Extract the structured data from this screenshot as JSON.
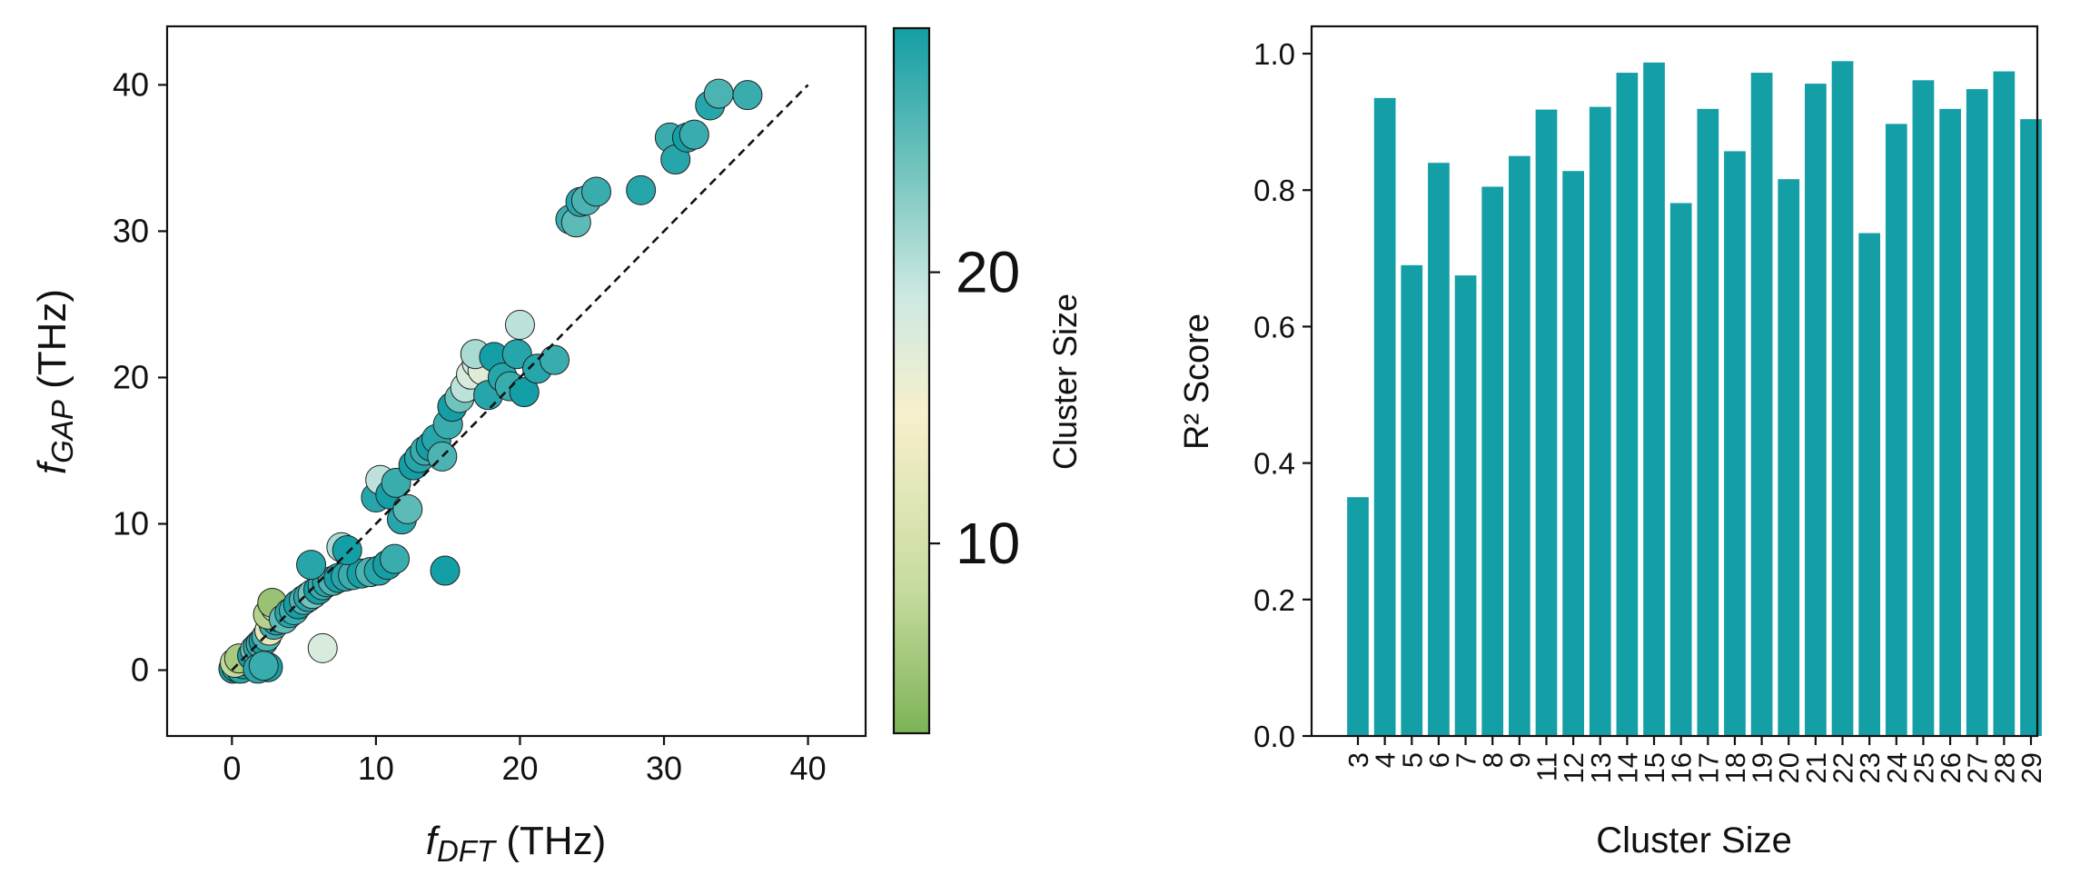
{
  "chart_data": [
    {
      "type": "scatter",
      "xlabel": {
        "main": "f",
        "sub": "DFT",
        "unit": " (THz)"
      },
      "ylabel": {
        "main": "f",
        "sub": "GAP",
        "unit": " (THz)"
      },
      "xlim": [
        -4.5,
        44
      ],
      "ylim": [
        -4.5,
        44
      ],
      "xticks": [
        0,
        10,
        20,
        30,
        40
      ],
      "yticks": [
        0,
        10,
        20,
        30,
        40
      ],
      "reference_line": {
        "from": [
          0,
          0
        ],
        "to": [
          40,
          40
        ],
        "style": "dashed"
      },
      "colorbar": {
        "label": "Cluster Size",
        "range": [
          3,
          29
        ],
        "ticks": [
          10,
          20
        ],
        "colors": [
          "#7db356",
          "#c6db9e",
          "#f7f0cc",
          "#cde9e2",
          "#73c4bd",
          "#149ea5"
        ]
      },
      "points": [
        [
          0.1,
          0.1,
          29
        ],
        [
          0.3,
          0.2,
          27
        ],
        [
          0.5,
          0.3,
          25
        ],
        [
          0.6,
          0.1,
          28
        ],
        [
          0.8,
          0.4,
          29
        ],
        [
          1.0,
          0.6,
          26
        ],
        [
          1.2,
          0.8,
          28
        ],
        [
          0.2,
          0.5,
          8
        ],
        [
          0.5,
          0.8,
          6
        ],
        [
          1.4,
          1.0,
          29
        ],
        [
          1.6,
          1.4,
          24
        ],
        [
          1.8,
          1.6,
          28
        ],
        [
          2.0,
          1.8,
          27
        ],
        [
          2.2,
          2.0,
          29
        ],
        [
          2.4,
          2.3,
          26
        ],
        [
          2.6,
          2.7,
          12
        ],
        [
          2.9,
          3.1,
          27
        ],
        [
          3.1,
          3.4,
          28
        ],
        [
          3.3,
          3.6,
          29
        ],
        [
          2.5,
          3.8,
          7
        ],
        [
          3.0,
          4.3,
          9
        ],
        [
          2.8,
          4.6,
          5
        ],
        [
          3.6,
          3.5,
          25
        ],
        [
          4.0,
          3.9,
          28
        ],
        [
          4.3,
          4.1,
          27
        ],
        [
          4.6,
          4.5,
          29
        ],
        [
          5.0,
          4.8,
          26
        ],
        [
          5.3,
          5.0,
          28
        ],
        [
          5.6,
          5.2,
          24
        ],
        [
          6.0,
          5.5,
          29
        ],
        [
          6.3,
          5.8,
          27
        ],
        [
          6.6,
          6.0,
          28
        ],
        [
          7.0,
          6.1,
          26
        ],
        [
          7.4,
          6.3,
          29
        ],
        [
          7.9,
          6.4,
          28
        ],
        [
          8.4,
          6.5,
          27
        ],
        [
          9.0,
          6.6,
          29
        ],
        [
          9.6,
          6.7,
          26
        ],
        [
          10.2,
          6.8,
          28
        ],
        [
          10.8,
          7.2,
          29
        ],
        [
          11.3,
          7.6,
          27
        ],
        [
          5.5,
          7.2,
          28
        ],
        [
          7.6,
          8.4,
          21
        ],
        [
          8.0,
          8.2,
          29
        ],
        [
          6.3,
          1.5,
          18
        ],
        [
          2.5,
          0.2,
          29
        ],
        [
          1.8,
          0.1,
          28
        ],
        [
          2.2,
          0.3,
          27
        ],
        [
          10.0,
          11.8,
          28
        ],
        [
          10.3,
          13.0,
          20
        ],
        [
          11.0,
          12.0,
          29
        ],
        [
          11.4,
          12.8,
          27
        ],
        [
          11.8,
          10.3,
          28
        ],
        [
          12.2,
          11.0,
          25
        ],
        [
          12.6,
          14.0,
          29
        ],
        [
          13.0,
          14.5,
          28
        ],
        [
          13.4,
          15.0,
          27
        ],
        [
          13.8,
          15.3,
          29
        ],
        [
          14.2,
          15.8,
          28
        ],
        [
          14.6,
          14.6,
          26
        ],
        [
          15.0,
          16.8,
          27
        ],
        [
          15.3,
          18.0,
          29
        ],
        [
          15.8,
          18.6,
          24
        ],
        [
          16.2,
          19.3,
          20
        ],
        [
          16.6,
          20.2,
          18
        ],
        [
          17.0,
          21.0,
          19
        ],
        [
          17.4,
          20.5,
          17
        ],
        [
          16.9,
          21.6,
          21
        ],
        [
          17.8,
          18.8,
          28
        ],
        [
          18.2,
          21.4,
          29
        ],
        [
          18.8,
          20.0,
          28
        ],
        [
          19.3,
          19.4,
          27
        ],
        [
          19.8,
          21.6,
          28
        ],
        [
          20.0,
          23.6,
          20
        ],
        [
          20.3,
          19.0,
          29
        ],
        [
          21.2,
          20.6,
          28
        ],
        [
          22.4,
          21.2,
          27
        ],
        [
          14.8,
          6.8,
          29
        ],
        [
          23.5,
          30.8,
          27
        ],
        [
          23.9,
          30.6,
          25
        ],
        [
          24.2,
          32.0,
          28
        ],
        [
          24.6,
          32.1,
          26
        ],
        [
          25.3,
          32.7,
          27
        ],
        [
          28.4,
          32.8,
          28
        ],
        [
          30.4,
          36.4,
          27
        ],
        [
          30.8,
          34.9,
          28
        ],
        [
          31.6,
          36.4,
          29
        ],
        [
          32.1,
          36.6,
          27
        ],
        [
          33.2,
          38.6,
          28
        ],
        [
          33.8,
          39.4,
          26
        ],
        [
          35.8,
          39.3,
          27
        ]
      ]
    },
    {
      "type": "bar",
      "ylabel": "R² Score",
      "xlabel": "Cluster Size",
      "ylim": [
        0,
        1.04
      ],
      "yticks": [
        "0.0",
        "0.2",
        "0.4",
        "0.6",
        "0.8",
        "1.0"
      ],
      "bar_color": "#149ea5",
      "categories": [
        "3",
        "4",
        "5",
        "6",
        "7",
        "8",
        "9",
        "11",
        "12",
        "13",
        "14",
        "15",
        "16",
        "17",
        "18",
        "19",
        "20",
        "21",
        "22",
        "23",
        "24",
        "25",
        "26",
        "27",
        "28",
        "29"
      ],
      "values": [
        0.35,
        0.935,
        0.69,
        0.84,
        0.675,
        0.805,
        0.85,
        0.918,
        0.828,
        0.922,
        0.972,
        0.987,
        0.781,
        0.919,
        0.857,
        0.972,
        0.816,
        0.956,
        0.989,
        0.737,
        0.897,
        0.961,
        0.919,
        0.948,
        0.974,
        0.904
      ]
    }
  ]
}
